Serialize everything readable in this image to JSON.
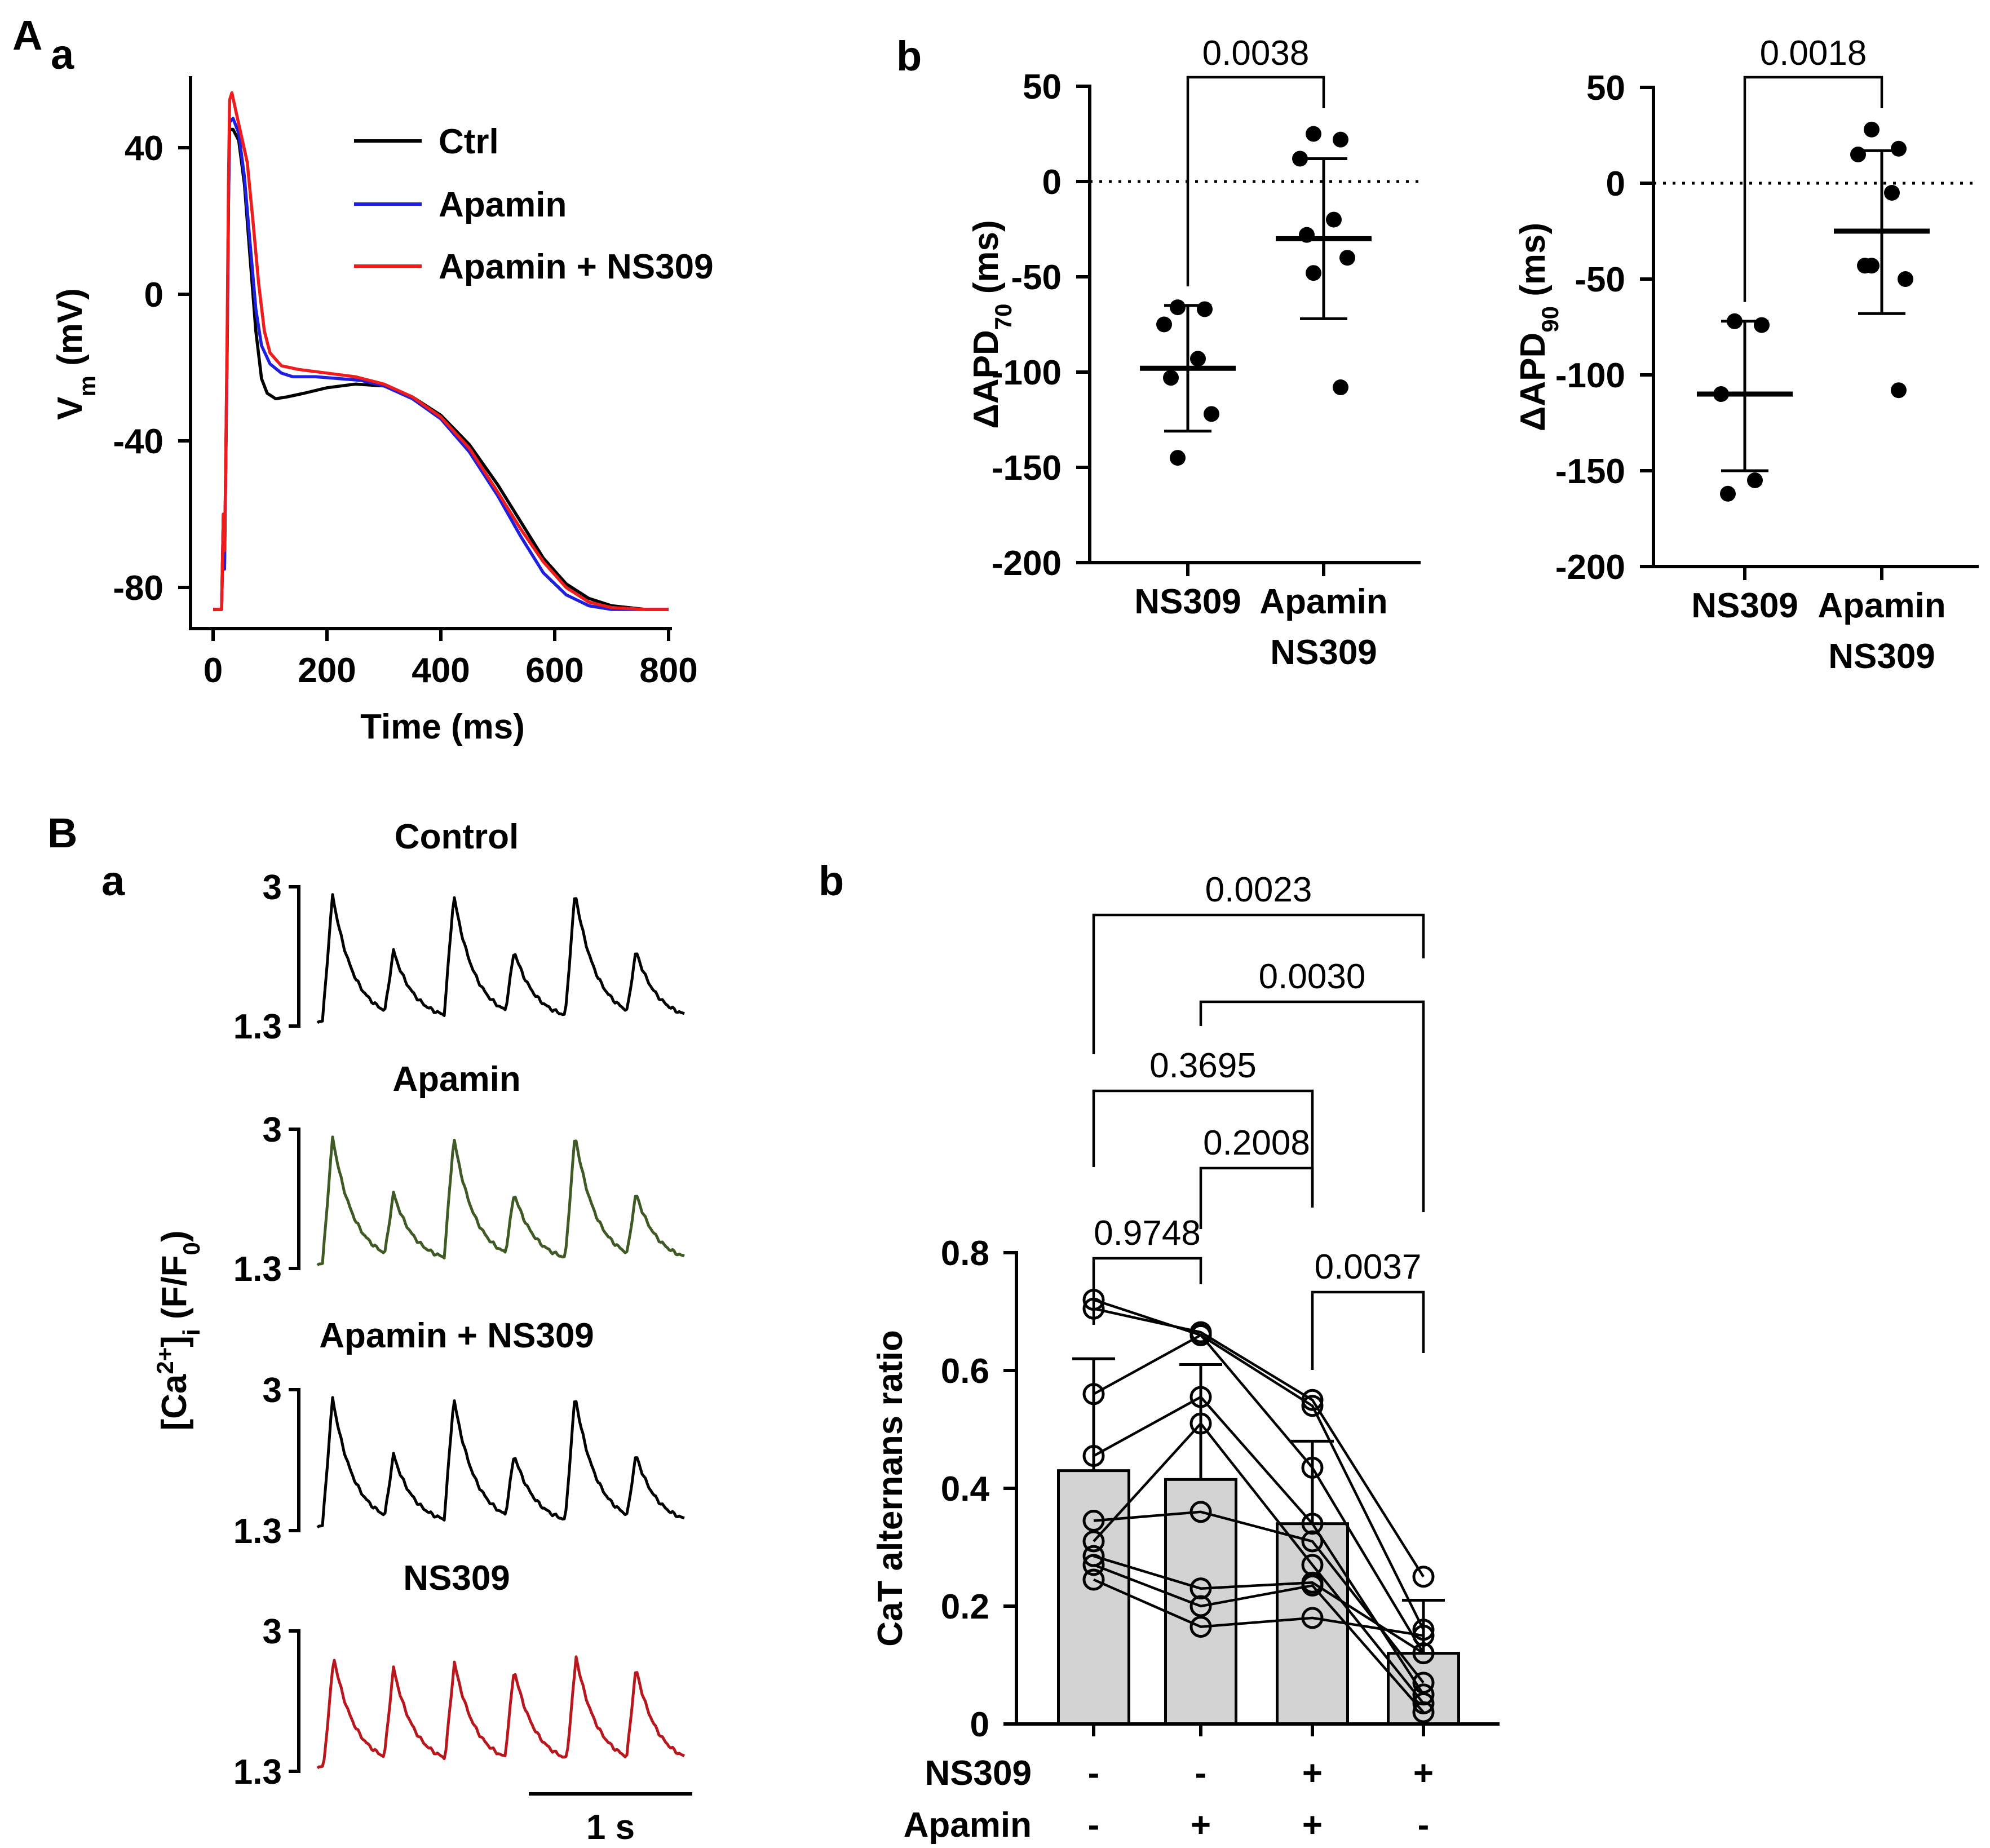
{
  "panel_labels": {
    "A": "A",
    "Aa": "a",
    "Ab": "b",
    "B": "B",
    "Ba": "a",
    "Bb": "b"
  },
  "colors": {
    "ctrl": "#000000",
    "apamin": "#1f1fe0",
    "apamin_ns309": "#ee1c1c",
    "green": "#3f5a24",
    "darkred": "#b8181d",
    "bar_fill": "#d3d3d3"
  },
  "chart_data": [
    {
      "id": "Aa",
      "type": "line",
      "xlabel": "Time (ms)",
      "ylabel": {
        "main": "V",
        "sub": "m",
        "rest": " (mV)"
      },
      "xlim": [
        -10,
        800
      ],
      "ylim": [
        -90,
        60
      ],
      "xticks": [
        0,
        200,
        400,
        600,
        800
      ],
      "xtick_labels": [
        "0",
        "200",
        "400",
        "600",
        "800"
      ],
      "yticks": [
        40,
        0,
        -40,
        -80
      ],
      "ytick_labels": [
        "40",
        "0",
        "-40",
        "-80"
      ],
      "legend": [
        "Ctrl",
        "Apamin",
        "Apamin + NS309"
      ],
      "legend_position": "top-right",
      "series": [
        {
          "name": "Ctrl",
          "color": "#000000",
          "points": [
            [
              0,
              -86
            ],
            [
              15,
              -86
            ],
            [
              18,
              -60
            ],
            [
              20,
              -75
            ],
            [
              22,
              -50
            ],
            [
              25,
              -10
            ],
            [
              27,
              25
            ],
            [
              29,
              45
            ],
            [
              35,
              45
            ],
            [
              45,
              42
            ],
            [
              55,
              30
            ],
            [
              65,
              10
            ],
            [
              75,
              -10
            ],
            [
              85,
              -23
            ],
            [
              95,
              -27
            ],
            [
              110,
              -28.5
            ],
            [
              130,
              -28
            ],
            [
              160,
              -27
            ],
            [
              200,
              -25.5
            ],
            [
              250,
              -24.5
            ],
            [
              300,
              -25
            ],
            [
              350,
              -28
            ],
            [
              400,
              -33
            ],
            [
              450,
              -41
            ],
            [
              500,
              -52
            ],
            [
              540,
              -62
            ],
            [
              580,
              -72
            ],
            [
              620,
              -79
            ],
            [
              660,
              -83
            ],
            [
              700,
              -85
            ],
            [
              760,
              -86
            ],
            [
              800,
              -86
            ]
          ]
        },
        {
          "name": "Apamin",
          "color": "#1f1fe0",
          "points": [
            [
              0,
              -86
            ],
            [
              15,
              -86
            ],
            [
              18,
              -60
            ],
            [
              20,
              -75
            ],
            [
              22,
              -50
            ],
            [
              25,
              -10
            ],
            [
              27,
              25
            ],
            [
              29,
              47
            ],
            [
              35,
              48
            ],
            [
              45,
              44
            ],
            [
              55,
              32
            ],
            [
              65,
              14
            ],
            [
              75,
              -4
            ],
            [
              85,
              -14
            ],
            [
              100,
              -19
            ],
            [
              120,
              -21.5
            ],
            [
              140,
              -22.5
            ],
            [
              180,
              -22.5
            ],
            [
              220,
              -23
            ],
            [
              260,
              -23.5
            ],
            [
              300,
              -25
            ],
            [
              350,
              -28.5
            ],
            [
              400,
              -34
            ],
            [
              450,
              -43
            ],
            [
              500,
              -55
            ],
            [
              540,
              -66
            ],
            [
              580,
              -76
            ],
            [
              620,
              -82
            ],
            [
              660,
              -85
            ],
            [
              700,
              -86
            ],
            [
              760,
              -86
            ],
            [
              800,
              -86
            ]
          ]
        },
        {
          "name": "Apamin + NS309",
          "color": "#ee1c1c",
          "points": [
            [
              0,
              -86
            ],
            [
              15,
              -86
            ],
            [
              18,
              -60
            ],
            [
              20,
              -70
            ],
            [
              22,
              -50
            ],
            [
              25,
              -5
            ],
            [
              27,
              30
            ],
            [
              29,
              53
            ],
            [
              33,
              55
            ],
            [
              40,
              50
            ],
            [
              50,
              43
            ],
            [
              60,
              36
            ],
            [
              70,
              20
            ],
            [
              80,
              3
            ],
            [
              90,
              -10
            ],
            [
              100,
              -16
            ],
            [
              120,
              -19.5
            ],
            [
              150,
              -20.5
            ],
            [
              200,
              -21.5
            ],
            [
              250,
              -22.5
            ],
            [
              300,
              -24.5
            ],
            [
              350,
              -28
            ],
            [
              400,
              -33.5
            ],
            [
              450,
              -42
            ],
            [
              500,
              -54
            ],
            [
              540,
              -64
            ],
            [
              580,
              -73
            ],
            [
              620,
              -80
            ],
            [
              660,
              -84
            ],
            [
              700,
              -85.5
            ],
            [
              760,
              -86
            ],
            [
              800,
              -86
            ]
          ]
        }
      ]
    },
    {
      "id": "Ab1",
      "type": "scatter",
      "ylabel": {
        "main": "ΔAPD",
        "sub": "70",
        "rest": " (ms)"
      },
      "ylim": [
        -200,
        50
      ],
      "yticks": [
        50,
        0,
        -50,
        -100,
        -150,
        -200
      ],
      "ytick_labels": [
        "50",
        "0",
        "-50",
        "-100",
        "-150",
        "-200"
      ],
      "categories": [
        [
          "NS309"
        ],
        [
          "Apamin",
          "NS309"
        ]
      ],
      "points": [
        [
          -66,
          -67,
          -75,
          -93,
          -103,
          -122,
          -145
        ],
        [
          25,
          22,
          12,
          -20,
          -28,
          -40,
          -48,
          -108
        ]
      ],
      "mean": [
        -98,
        -30
      ],
      "sd_hi": [
        -65,
        12
      ],
      "sd_lo": [
        -131,
        -72
      ],
      "p_value": "0.0038"
    },
    {
      "id": "Ab2",
      "type": "scatter",
      "ylabel": {
        "main": "ΔAPD",
        "sub": "90",
        "rest": " (ms)"
      },
      "ylim": [
        -200,
        50
      ],
      "yticks": [
        50,
        0,
        -50,
        -100,
        -150,
        -200
      ],
      "ytick_labels": [
        "50",
        "0",
        "-50",
        "-100",
        "-150",
        "-200"
      ],
      "categories": [
        [
          "NS309"
        ],
        [
          "Apamin",
          "NS309"
        ]
      ],
      "points": [
        [
          -72,
          -74,
          -110,
          -155,
          -162
        ],
        [
          28,
          18,
          15,
          -5,
          -43,
          -50,
          -43,
          -108
        ]
      ],
      "mean": [
        -110,
        -25
      ],
      "sd_hi": [
        -72,
        17
      ],
      "sd_lo": [
        -150,
        -68
      ],
      "p_value": "0.0018"
    },
    {
      "id": "Ba",
      "type": "line",
      "ylabel": {
        "pre": "[Ca",
        "sup": "2+",
        "mid": "]",
        "sub": "i",
        "rest": " (F/F",
        "sub2": "0",
        "end": ")"
      },
      "ytick_labels": [
        "3",
        "1.3"
      ],
      "ylim": [
        1.3,
        3
      ],
      "scale_bar": "1 s",
      "traces": [
        {
          "title": "Control",
          "color": "#000000",
          "pattern": "alternans"
        },
        {
          "title": "Apamin",
          "color": "#3f5a24",
          "pattern": "alternans"
        },
        {
          "title": "Apamin + NS309",
          "color": "#000000",
          "pattern": "alternans"
        },
        {
          "title": "NS309",
          "color": "#b8181d",
          "pattern": "regular"
        }
      ]
    },
    {
      "id": "Bb",
      "type": "bar",
      "ylabel": "CaT alternans ratio",
      "ylim": [
        0,
        0.8
      ],
      "yticks": [
        0,
        0.2,
        0.4,
        0.6,
        0.8
      ],
      "ytick_labels": [
        "0",
        "0.2",
        "0.4",
        "0.6",
        "0.8"
      ],
      "values": [
        0.43,
        0.415,
        0.34,
        0.12
      ],
      "sd_hi": [
        0.62,
        0.61,
        0.48,
        0.21
      ],
      "row_labels": [
        "NS309",
        "Apamin"
      ],
      "ns309_signs": [
        "-",
        "-",
        "+",
        "+"
      ],
      "apamin_signs": [
        "-",
        "+",
        "+",
        "-"
      ],
      "paired_points": [
        [
          0.72,
          0.66,
          0.54,
          0.16
        ],
        [
          0.705,
          0.665,
          0.55,
          0.25
        ],
        [
          0.56,
          0.66,
          0.435,
          0.12
        ],
        [
          0.455,
          0.555,
          0.34,
          0.05
        ],
        [
          0.345,
          0.36,
          0.31,
          0.07
        ],
        [
          0.31,
          0.51,
          0.27,
          0.035
        ],
        [
          0.285,
          0.23,
          0.24,
          0.12
        ],
        [
          0.27,
          0.2,
          0.235,
          0.02
        ],
        [
          0.245,
          0.165,
          0.18,
          0.15
        ]
      ],
      "comparisons": [
        {
          "a": 0,
          "b": 1,
          "p": "0.9748"
        },
        {
          "a": 2,
          "b": 3,
          "p": "0.0037"
        },
        {
          "a": 1,
          "b": 2,
          "p": "0.2008"
        },
        {
          "a": 0,
          "b": 2,
          "p": "0.3695"
        },
        {
          "a": 1,
          "b": 3,
          "p": "0.0030"
        },
        {
          "a": 0,
          "b": 3,
          "p": "0.0023"
        }
      ]
    }
  ]
}
